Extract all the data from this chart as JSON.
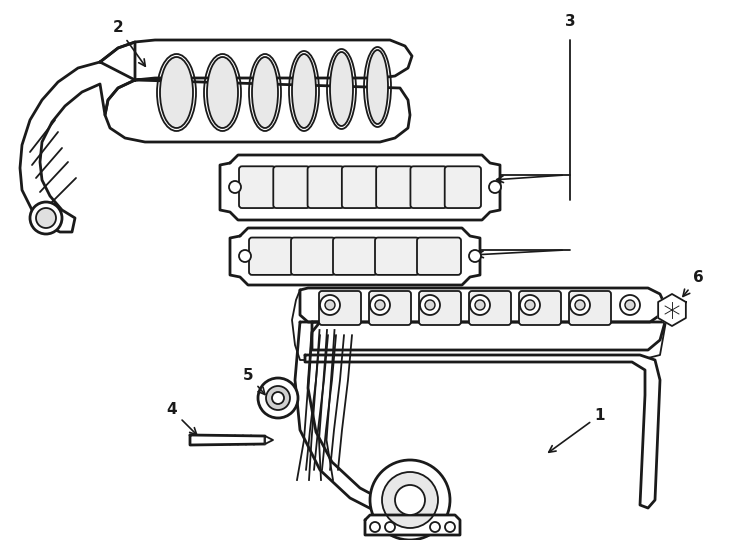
{
  "background_color": "#ffffff",
  "line_color": "#1a1a1a",
  "fig_width": 7.34,
  "fig_height": 5.4,
  "dpi": 100,
  "label_fontsize": 11,
  "label_fontweight": "bold"
}
